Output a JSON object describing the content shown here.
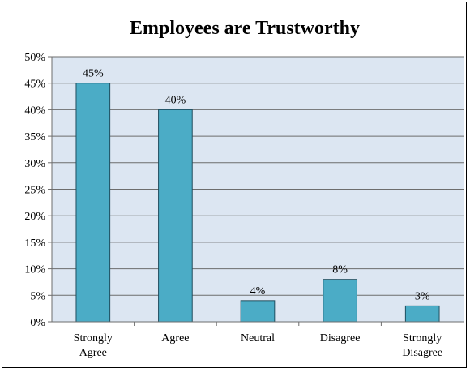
{
  "chart_data": {
    "type": "bar",
    "title": "Employees are Trustworthy",
    "categories": [
      "Strongly Agree",
      "Agree",
      "Neutral",
      "Disagree",
      "Strongly Disagree"
    ],
    "category_lines": [
      [
        "Strongly",
        "Agree"
      ],
      [
        "Agree"
      ],
      [
        "Neutral"
      ],
      [
        "Disagree"
      ],
      [
        "Strongly",
        "Disagree"
      ]
    ],
    "values": [
      45,
      40,
      4,
      8,
      3
    ],
    "data_labels": [
      "45%",
      "40%",
      "4%",
      "8%",
      "3%"
    ],
    "y_ticks": [
      "0%",
      "5%",
      "10%",
      "15%",
      "20%",
      "25%",
      "30%",
      "35%",
      "40%",
      "45%",
      "50%"
    ],
    "ylim": [
      0,
      50
    ],
    "grid": true,
    "colors": {
      "plot_background": "#dce6f2",
      "bar_fill": "#4bacc6",
      "bar_stroke": "#1f4e5f",
      "gridline": "#6d6d6d"
    }
  }
}
